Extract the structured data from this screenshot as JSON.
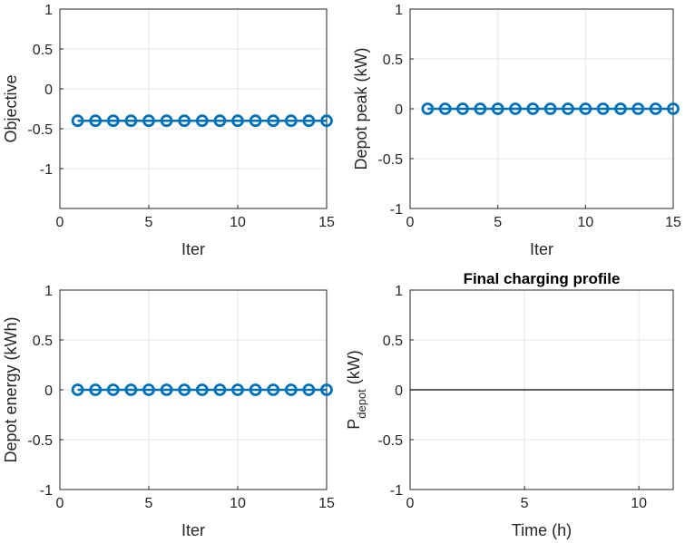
{
  "chart_data": [
    {
      "type": "line",
      "title": "",
      "xlabel": "Iter",
      "ylabel": "Objective",
      "xlim": [
        0,
        15
      ],
      "ylim": [
        -1.5,
        1
      ],
      "xticks": [
        0,
        5,
        10,
        15
      ],
      "yticks": [
        1,
        0.5,
        0,
        -0.5,
        -1
      ],
      "xtick_labels": [
        "0",
        "5",
        "10",
        "15"
      ],
      "ytick_labels": [
        "1",
        "0.5",
        "0",
        "-0.5",
        "-1"
      ],
      "grid": true,
      "series": [
        {
          "marker": "circle",
          "color": "#0072bd",
          "x": [
            1,
            2,
            3,
            4,
            5,
            6,
            7,
            8,
            9,
            10,
            11,
            12,
            13,
            14,
            15
          ],
          "y": [
            -0.4,
            -0.4,
            -0.4,
            -0.4,
            -0.4,
            -0.4,
            -0.4,
            -0.4,
            -0.4,
            -0.4,
            -0.4,
            -0.4,
            -0.4,
            -0.4,
            -0.4
          ]
        }
      ]
    },
    {
      "type": "line",
      "title": "",
      "xlabel": "Iter",
      "ylabel": "Depot peak (kW)",
      "xlim": [
        0,
        15
      ],
      "ylim": [
        -1,
        1
      ],
      "xticks": [
        0,
        5,
        10,
        15
      ],
      "yticks": [
        1,
        0.5,
        0,
        -0.5,
        -1
      ],
      "xtick_labels": [
        "0",
        "5",
        "10",
        "15"
      ],
      "ytick_labels": [
        "1",
        "0.5",
        "0",
        "-0.5",
        "-1"
      ],
      "grid": true,
      "series": [
        {
          "marker": "circle",
          "color": "#0072bd",
          "x": [
            1,
            2,
            3,
            4,
            5,
            6,
            7,
            8,
            9,
            10,
            11,
            12,
            13,
            14,
            15
          ],
          "y": [
            0,
            0,
            0,
            0,
            0,
            0,
            0,
            0,
            0,
            0,
            0,
            0,
            0,
            0,
            0
          ]
        }
      ]
    },
    {
      "type": "line",
      "title": "",
      "xlabel": "Iter",
      "ylabel": "Depot energy (kWh)",
      "xlim": [
        0,
        15
      ],
      "ylim": [
        -1,
        1
      ],
      "xticks": [
        0,
        5,
        10,
        15
      ],
      "yticks": [
        1,
        0.5,
        0,
        -0.5,
        -1
      ],
      "xtick_labels": [
        "0",
        "5",
        "10",
        "15"
      ],
      "ytick_labels": [
        "1",
        "0.5",
        "0",
        "-0.5",
        "-1"
      ],
      "grid": true,
      "series": [
        {
          "marker": "circle",
          "color": "#0072bd",
          "x": [
            1,
            2,
            3,
            4,
            5,
            6,
            7,
            8,
            9,
            10,
            11,
            12,
            13,
            14,
            15
          ],
          "y": [
            0,
            0,
            0,
            0,
            0,
            0,
            0,
            0,
            0,
            0,
            0,
            0,
            0,
            0,
            0
          ]
        }
      ]
    },
    {
      "type": "line",
      "title": "Final charging profile",
      "xlabel": "Time (h)",
      "ylabel": "P",
      "ylabel_subscript": "depot",
      "ylabel_suffix": " (kW)",
      "xlim": [
        0,
        11.5
      ],
      "ylim": [
        -1,
        1
      ],
      "xticks": [
        0,
        5,
        10
      ],
      "yticks": [
        1,
        0.5,
        0,
        -0.5,
        -1
      ],
      "xtick_labels": [
        "0",
        "5",
        "10"
      ],
      "ytick_labels": [
        "1",
        "0.5",
        "0",
        "-0.5",
        "-1"
      ],
      "grid": true,
      "series": [
        {
          "marker": "none",
          "color": "#000000",
          "x": [
            0,
            11.5
          ],
          "y": [
            0,
            0
          ]
        }
      ]
    }
  ]
}
